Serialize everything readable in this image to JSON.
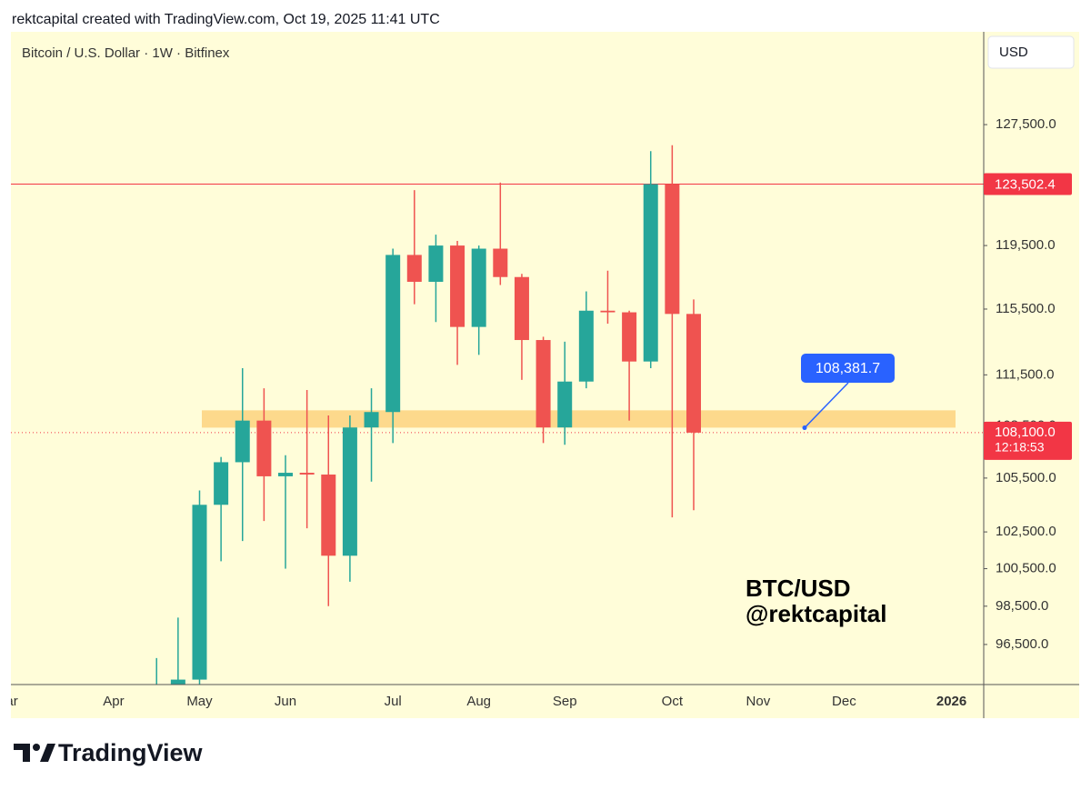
{
  "header": "rektcapital created with TradingView.com, Oct 19, 2025 11:41 UTC",
  "footer": "TradingView",
  "currency_button": "USD",
  "chart_data": {
    "type": "candlestick",
    "title": "Bitcoin / U.S. Dollar · 1W · Bitfinex",
    "watermark": [
      "BTC/USD",
      "@rektcapital"
    ],
    "categories": [
      "Mar",
      null,
      null,
      null,
      null,
      "Apr",
      null,
      null,
      null,
      "May",
      null,
      null,
      null,
      "Jun",
      null,
      null,
      null,
      null,
      "Jul",
      null,
      null,
      null,
      "Aug",
      null,
      null,
      null,
      "Sep",
      null,
      null,
      null,
      null,
      "Oct",
      null,
      null,
      null,
      "Nov",
      null,
      null,
      null,
      "Dec",
      null,
      null,
      null,
      null,
      "2026",
      null
    ],
    "open": [
      null,
      null,
      null,
      null,
      null,
      null,
      null,
      93000,
      94300,
      94700,
      104000,
      106400,
      108800,
      105600,
      105800,
      105700,
      101200,
      108400,
      109300,
      118900,
      117200,
      119500,
      114400,
      119300,
      117500,
      113600,
      108400,
      111100,
      115400,
      115300,
      112300,
      123500,
      115200,
      null,
      null,
      null,
      null,
      null,
      null,
      null,
      null,
      null,
      null,
      null,
      null,
      null
    ],
    "high": [
      null,
      null,
      null,
      null,
      null,
      null,
      null,
      95800,
      97900,
      104800,
      106700,
      111900,
      110700,
      106800,
      110600,
      109100,
      109100,
      110700,
      119300,
      123100,
      120200,
      119800,
      119500,
      123600,
      117700,
      113800,
      113500,
      116600,
      117900,
      115400,
      125700,
      126100,
      116100,
      null,
      null,
      null,
      null,
      null,
      null,
      null,
      null,
      null,
      null,
      null,
      null,
      null
    ],
    "low": [
      null,
      null,
      null,
      null,
      null,
      null,
      null,
      92800,
      93500,
      94400,
      100900,
      102000,
      103100,
      100500,
      102700,
      98500,
      99800,
      105300,
      107500,
      115800,
      114700,
      112100,
      112700,
      117000,
      111200,
      107500,
      107400,
      110700,
      114600,
      108800,
      111900,
      103300,
      103700,
      null,
      null,
      null,
      null,
      null,
      null,
      null,
      null,
      null,
      null,
      null,
      null,
      null
    ],
    "close": [
      null,
      null,
      null,
      null,
      null,
      null,
      null,
      94300,
      94700,
      104000,
      106400,
      108800,
      105600,
      105800,
      105700,
      101200,
      108400,
      109300,
      118900,
      117200,
      119500,
      114400,
      119300,
      117500,
      113600,
      108400,
      111100,
      115400,
      115300,
      112300,
      123500,
      115200,
      108100,
      null,
      null,
      null,
      null,
      null,
      null,
      null,
      null,
      null,
      null,
      null,
      null,
      null
    ],
    "up_color": "#26a69a",
    "down_color": "#ef5350",
    "log_scale": true,
    "ylim": [
      94450,
      134000
    ],
    "yticks": [
      {
        "value": 96500,
        "label": "96,500.0"
      },
      {
        "value": 98500,
        "label": "98,500.0"
      },
      {
        "value": 100500,
        "label": "100,500.0"
      },
      {
        "value": 102500,
        "label": "102,500.0"
      },
      {
        "value": 105500,
        "label": "105,500.0"
      },
      {
        "value": 108500,
        "label": "108,500.0"
      },
      {
        "value": 111500,
        "label": "111,500.0"
      },
      {
        "value": 115500,
        "label": "115,500.0"
      },
      {
        "value": 119500,
        "label": "119,500.0"
      },
      {
        "value": 127500,
        "label": "127,500.0"
      }
    ],
    "hline": {
      "value": 123502.4,
      "label": "123,502.4",
      "color": "#f23645"
    },
    "last_price": {
      "value": 108100,
      "label": "108,100.0",
      "countdown": "12:18:53",
      "color": "#f23645"
    },
    "zone": [
      108390,
      109400
    ],
    "zone_color": "#fdd98c",
    "callout": {
      "value": 108381.7,
      "label": "108,381.7",
      "color": "#2962ff"
    }
  }
}
